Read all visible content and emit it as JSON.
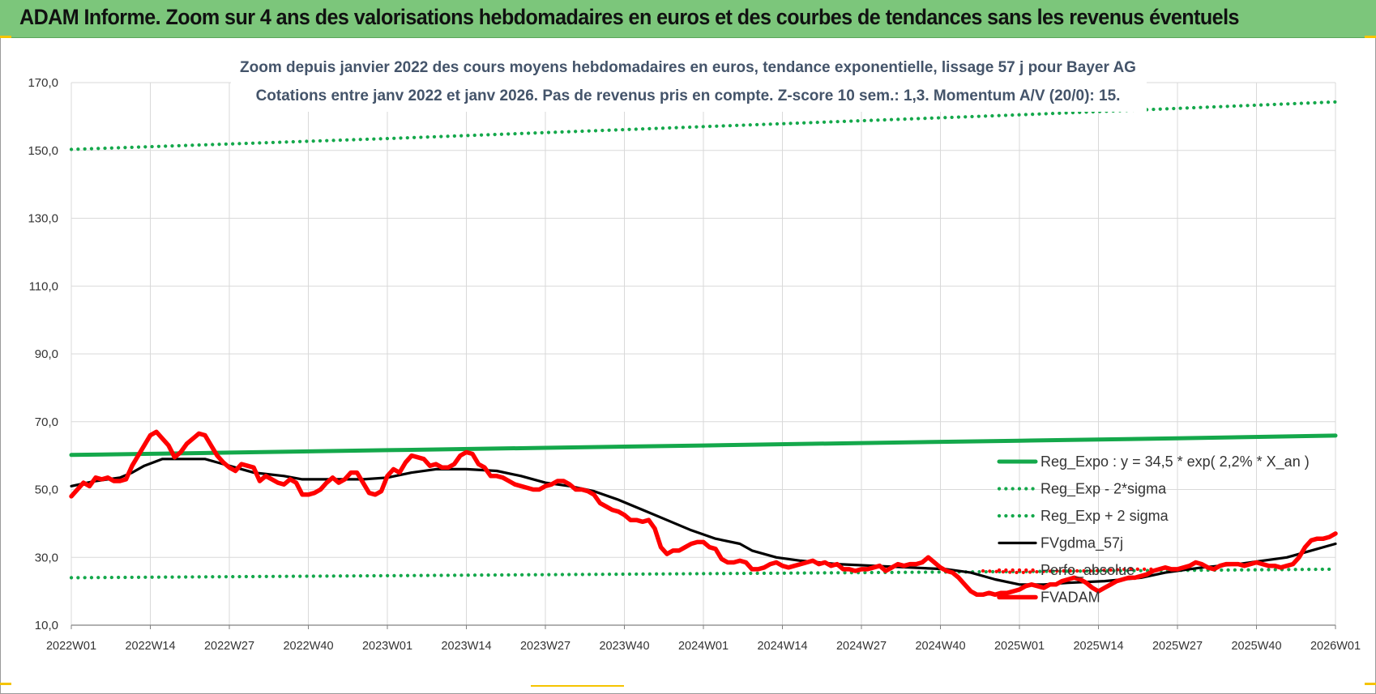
{
  "header": {
    "title": "ADAM Informe. Zoom sur 4 ans des valorisations hebdomadaires en euros et des courbes de tendances sans les revenus éventuels"
  },
  "colors": {
    "header_bg": "#7cc67b",
    "trend_green": "#14a84b",
    "price_red": "#ff0000",
    "moving_avg_black": "#000000",
    "gridline": "#d9d9d9",
    "subtitle": "#44546a"
  },
  "chart_data": {
    "type": "line",
    "title_lines": [
      "Zoom depuis janvier 2022 des cours moyens hebdomadaires en euros, tendance exponentielle, lissage 57 j pour Bayer AG",
      "Cotations entre janv 2022 et janv 2026. Pas de revenus pris en compte. Z-score 10 sem.: 1,3. Momentum A/V (20/0): 15."
    ],
    "x_tick_labels": [
      "2022W01",
      "2022W14",
      "2022W27",
      "2022W40",
      "2023W01",
      "2023W14",
      "2023W27",
      "2023W40",
      "2024W01",
      "2024W14",
      "2024W27",
      "2024W40",
      "2025W01",
      "2025W14",
      "2025W27",
      "2025W40",
      "2026W01"
    ],
    "y_tick_labels": [
      "10,0",
      "30,0",
      "50,0",
      "70,0",
      "90,0",
      "110,0",
      "130,0",
      "150,0",
      "170,0"
    ],
    "ylim": [
      10,
      170
    ],
    "x_range_weeks": [
      0,
      208
    ],
    "grid": true,
    "legend_position": "bottom-right",
    "series": [
      {
        "name": "Reg_Expo : y = 34,5 * exp( 2,2% *  X_an )",
        "style": "solid-thick",
        "color": "#14a84b",
        "points": [
          [
            0,
            60.2
          ],
          [
            26,
            60.9
          ],
          [
            52,
            61.6
          ],
          [
            78,
            62.3
          ],
          [
            104,
            63.0
          ],
          [
            130,
            63.7
          ],
          [
            156,
            64.4
          ],
          [
            182,
            65.1
          ],
          [
            208,
            65.9
          ]
        ]
      },
      {
        "name": "Reg_Exp - 2*sigma",
        "style": "dotted",
        "color": "#14a84b",
        "points": [
          [
            0,
            24.0
          ],
          [
            52,
            24.6
          ],
          [
            104,
            25.2
          ],
          [
            156,
            25.8
          ],
          [
            208,
            26.5
          ]
        ]
      },
      {
        "name": "Reg_Exp + 2 sigma",
        "style": "dotted",
        "color": "#14a84b",
        "points": [
          [
            0,
            150.3
          ],
          [
            52,
            153.5
          ],
          [
            104,
            157.0
          ],
          [
            156,
            160.5
          ],
          [
            208,
            164.3
          ]
        ]
      },
      {
        "name": "FVgdma_57j",
        "style": "solid",
        "color": "#000000",
        "points": [
          [
            0,
            51
          ],
          [
            4,
            52.5
          ],
          [
            8,
            53.5
          ],
          [
            10,
            55
          ],
          [
            12,
            57
          ],
          [
            15,
            59
          ],
          [
            18,
            59
          ],
          [
            22,
            59
          ],
          [
            24,
            58
          ],
          [
            26,
            57
          ],
          [
            30,
            55
          ],
          [
            35,
            54
          ],
          [
            38,
            53
          ],
          [
            44,
            53
          ],
          [
            48,
            53
          ],
          [
            52,
            53.5
          ],
          [
            56,
            55
          ],
          [
            60,
            56
          ],
          [
            65,
            56
          ],
          [
            70,
            55.5
          ],
          [
            74,
            54
          ],
          [
            78,
            52
          ],
          [
            82,
            51
          ],
          [
            86,
            49.5
          ],
          [
            90,
            47
          ],
          [
            94,
            44
          ],
          [
            98,
            41
          ],
          [
            102,
            38
          ],
          [
            106,
            35.5
          ],
          [
            110,
            34
          ],
          [
            112,
            32
          ],
          [
            116,
            30
          ],
          [
            120,
            29
          ],
          [
            126,
            28
          ],
          [
            132,
            27.5
          ],
          [
            138,
            27
          ],
          [
            144,
            26.5
          ],
          [
            148,
            25.5
          ],
          [
            152,
            23.5
          ],
          [
            156,
            22
          ],
          [
            160,
            22
          ],
          [
            164,
            22.5
          ],
          [
            170,
            23
          ],
          [
            176,
            24
          ],
          [
            180,
            25.5
          ],
          [
            186,
            27
          ],
          [
            192,
            28
          ],
          [
            196,
            29
          ],
          [
            200,
            30
          ],
          [
            204,
            32
          ],
          [
            208,
            34
          ]
        ]
      },
      {
        "name": "Perfo_absolue",
        "style": "dotted",
        "color": "#ff0000",
        "points": [
          [
            150,
            26
          ],
          [
            156,
            25.5
          ],
          [
            162,
            26
          ],
          [
            168,
            26
          ],
          [
            174,
            26.5
          ],
          [
            178,
            26.5
          ]
        ]
      },
      {
        "name": "FVADAM",
        "style": "solid-thick",
        "color": "#ff0000",
        "points": [
          [
            0,
            48
          ],
          [
            1,
            50
          ],
          [
            2,
            52
          ],
          [
            3,
            51
          ],
          [
            4,
            53.5
          ],
          [
            5,
            53
          ],
          [
            6,
            53.5
          ],
          [
            7,
            52.5
          ],
          [
            8,
            52.5
          ],
          [
            9,
            53
          ],
          [
            10,
            57
          ],
          [
            11,
            60
          ],
          [
            12,
            63
          ],
          [
            13,
            66
          ],
          [
            14,
            67
          ],
          [
            15,
            65
          ],
          [
            16,
            63
          ],
          [
            17,
            59.5
          ],
          [
            18,
            61
          ],
          [
            19,
            63.5
          ],
          [
            20,
            65
          ],
          [
            21,
            66.5
          ],
          [
            22,
            66
          ],
          [
            23,
            63
          ],
          [
            24,
            60
          ],
          [
            25,
            58
          ],
          [
            26,
            56.5
          ],
          [
            27,
            55.5
          ],
          [
            28,
            57.5
          ],
          [
            29,
            57
          ],
          [
            30,
            56.5
          ],
          [
            31,
            52.5
          ],
          [
            32,
            54
          ],
          [
            33,
            53
          ],
          [
            34,
            52
          ],
          [
            35,
            51.5
          ],
          [
            36,
            53
          ],
          [
            37,
            52
          ],
          [
            38,
            48.5
          ],
          [
            39,
            48.5
          ],
          [
            40,
            49
          ],
          [
            41,
            50
          ],
          [
            42,
            52
          ],
          [
            43,
            53.5
          ],
          [
            44,
            52
          ],
          [
            45,
            53
          ],
          [
            46,
            55
          ],
          [
            47,
            55
          ],
          [
            48,
            52
          ],
          [
            49,
            49
          ],
          [
            50,
            48.5
          ],
          [
            51,
            49.5
          ],
          [
            52,
            54
          ],
          [
            53,
            56
          ],
          [
            54,
            55
          ],
          [
            55,
            58
          ],
          [
            56,
            60
          ],
          [
            57,
            59.5
          ],
          [
            58,
            59
          ],
          [
            59,
            57
          ],
          [
            60,
            57.5
          ],
          [
            61,
            56.5
          ],
          [
            62,
            56.5
          ],
          [
            63,
            57.5
          ],
          [
            64,
            60
          ],
          [
            65,
            61
          ],
          [
            66,
            60.5
          ],
          [
            67,
            57.5
          ],
          [
            68,
            56.5
          ],
          [
            69,
            54
          ],
          [
            70,
            54
          ],
          [
            71,
            53.5
          ],
          [
            72,
            52.5
          ],
          [
            73,
            51.5
          ],
          [
            74,
            51
          ],
          [
            75,
            50.5
          ],
          [
            76,
            50
          ],
          [
            77,
            50
          ],
          [
            78,
            51
          ],
          [
            79,
            51.5
          ],
          [
            80,
            52.5
          ],
          [
            81,
            52.5
          ],
          [
            82,
            51.5
          ],
          [
            83,
            50
          ],
          [
            84,
            50
          ],
          [
            85,
            49.5
          ],
          [
            86,
            48.5
          ],
          [
            87,
            46
          ],
          [
            88,
            45
          ],
          [
            89,
            44
          ],
          [
            90,
            43.5
          ],
          [
            91,
            42.5
          ],
          [
            92,
            41
          ],
          [
            93,
            41
          ],
          [
            94,
            40.5
          ],
          [
            95,
            41
          ],
          [
            96,
            38.5
          ],
          [
            97,
            33
          ],
          [
            98,
            31
          ],
          [
            99,
            32
          ],
          [
            100,
            32
          ],
          [
            101,
            33
          ],
          [
            102,
            34
          ],
          [
            103,
            34.5
          ],
          [
            104,
            34.5
          ],
          [
            105,
            33
          ],
          [
            106,
            32.5
          ],
          [
            107,
            29.5
          ],
          [
            108,
            28.5
          ],
          [
            109,
            28.5
          ],
          [
            110,
            29
          ],
          [
            111,
            28.5
          ],
          [
            112,
            26.5
          ],
          [
            113,
            26.5
          ],
          [
            114,
            27
          ],
          [
            115,
            28
          ],
          [
            116,
            28.5
          ],
          [
            117,
            27.5
          ],
          [
            118,
            27
          ],
          [
            119,
            27.5
          ],
          [
            120,
            28
          ],
          [
            121,
            28.5
          ],
          [
            122,
            29
          ],
          [
            123,
            28
          ],
          [
            124,
            28.5
          ],
          [
            125,
            27.5
          ],
          [
            126,
            28
          ],
          [
            127,
            26.5
          ],
          [
            128,
            26.5
          ],
          [
            129,
            26
          ],
          [
            130,
            26.5
          ],
          [
            131,
            26.5
          ],
          [
            132,
            27
          ],
          [
            133,
            27.5
          ],
          [
            134,
            26
          ],
          [
            135,
            27
          ],
          [
            136,
            28
          ],
          [
            137,
            27.5
          ],
          [
            138,
            28
          ],
          [
            139,
            28
          ],
          [
            140,
            28.5
          ],
          [
            141,
            30
          ],
          [
            142,
            28.5
          ],
          [
            143,
            27
          ],
          [
            144,
            26
          ],
          [
            145,
            25.5
          ],
          [
            146,
            24
          ],
          [
            147,
            22
          ],
          [
            148,
            20
          ],
          [
            149,
            19
          ],
          [
            150,
            19
          ],
          [
            151,
            19.5
          ],
          [
            152,
            19
          ],
          [
            153,
            19.5
          ],
          [
            154,
            19.5
          ],
          [
            155,
            20
          ],
          [
            156,
            20.5
          ],
          [
            157,
            21.5
          ],
          [
            158,
            22
          ],
          [
            159,
            21.5
          ],
          [
            160,
            21
          ],
          [
            161,
            22
          ],
          [
            162,
            22
          ],
          [
            163,
            23
          ],
          [
            164,
            23.5
          ],
          [
            165,
            24
          ],
          [
            166,
            23.5
          ],
          [
            167,
            22.5
          ],
          [
            168,
            21
          ],
          [
            169,
            20
          ],
          [
            170,
            21
          ],
          [
            171,
            22
          ],
          [
            172,
            23
          ],
          [
            173,
            23.5
          ],
          [
            174,
            24
          ],
          [
            175,
            24
          ],
          [
            176,
            24.5
          ],
          [
            177,
            25
          ],
          [
            178,
            26
          ],
          [
            179,
            26.5
          ],
          [
            180,
            27
          ],
          [
            181,
            26.5
          ],
          [
            182,
            26.5
          ],
          [
            183,
            27
          ],
          [
            184,
            27.5
          ],
          [
            185,
            28.5
          ],
          [
            186,
            28
          ],
          [
            187,
            27
          ],
          [
            188,
            26.5
          ],
          [
            189,
            27.5
          ],
          [
            190,
            28
          ],
          [
            191,
            28
          ],
          [
            192,
            28
          ],
          [
            193,
            27.5
          ],
          [
            194,
            28
          ],
          [
            195,
            28.5
          ],
          [
            196,
            28
          ],
          [
            197,
            27.5
          ],
          [
            198,
            27.5
          ],
          [
            199,
            27
          ],
          [
            200,
            27.5
          ],
          [
            201,
            28
          ],
          [
            202,
            30
          ],
          [
            203,
            33
          ],
          [
            204,
            35
          ],
          [
            205,
            35.5
          ],
          [
            206,
            35.5
          ],
          [
            207,
            36
          ],
          [
            208,
            37
          ]
        ]
      }
    ]
  }
}
